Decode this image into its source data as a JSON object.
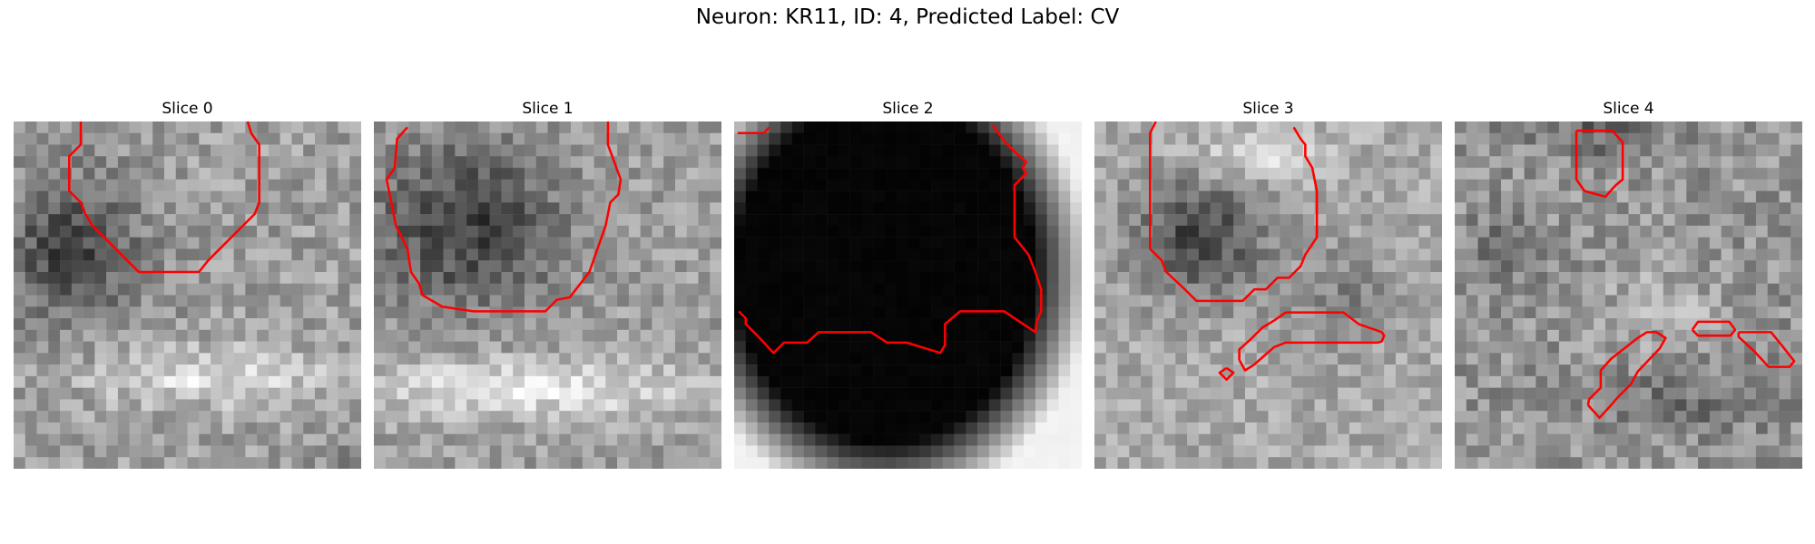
{
  "figure": {
    "title": "Neuron: KR11, ID: 4, Predicted Label: CV"
  },
  "contour_color": "#ff0000",
  "grid_size": 30,
  "slices": [
    {
      "label": "Slice 0",
      "background": "noisy gray texture; dark blob upper-left, bright band lower-middle",
      "contours": [
        [
          [
            5.8,
            0
          ],
          [
            5.8,
            2
          ],
          [
            4.8,
            3
          ],
          [
            4.8,
            6
          ],
          [
            5.8,
            7
          ],
          [
            6.2,
            8
          ],
          [
            6.8,
            9
          ],
          [
            7.8,
            10
          ],
          [
            8.8,
            11
          ],
          [
            9.8,
            12
          ],
          [
            10.8,
            13
          ],
          [
            16,
            13
          ],
          [
            16.8,
            12
          ],
          [
            17.8,
            11
          ],
          [
            18.8,
            10
          ],
          [
            20.8,
            8
          ],
          [
            21.2,
            7
          ],
          [
            21.2,
            2
          ],
          [
            20.5,
            1
          ],
          [
            20.2,
            0
          ]
        ]
      ]
    },
    {
      "label": "Slice 1",
      "background": "dark round region upper area, bright band lower area",
      "contours": [
        [
          [
            2.9,
            0.5
          ],
          [
            2,
            1.5
          ],
          [
            1.8,
            4
          ],
          [
            1.1,
            5
          ],
          [
            1.5,
            7
          ],
          [
            1.9,
            9
          ],
          [
            2.9,
            11
          ],
          [
            3.2,
            13
          ],
          [
            3.9,
            14
          ],
          [
            4.2,
            15
          ],
          [
            5.9,
            16
          ],
          [
            8.6,
            16.4
          ],
          [
            14.8,
            16.4
          ],
          [
            15.8,
            15.4
          ],
          [
            16.9,
            15.2
          ],
          [
            18.6,
            13
          ],
          [
            19.3,
            11
          ],
          [
            20,
            9
          ],
          [
            20.4,
            7
          ],
          [
            21.1,
            6.3
          ],
          [
            21.3,
            5
          ],
          [
            20.2,
            2
          ],
          [
            20.2,
            0
          ]
        ]
      ]
    },
    {
      "label": "Slice 2",
      "background": "mostly black, bright band along right edge and bottom-right corner",
      "contours": [
        [
          [
            0.3,
            1
          ],
          [
            2.6,
            1
          ],
          [
            3.0,
            0.5
          ]
        ],
        [
          [
            0.4,
            16.4
          ],
          [
            1,
            17
          ],
          [
            1,
            17.5
          ],
          [
            2,
            18.5
          ],
          [
            3.4,
            20
          ],
          [
            4.3,
            19.1
          ],
          [
            6.3,
            19.1
          ],
          [
            7.3,
            18.2
          ],
          [
            11.8,
            18.2
          ],
          [
            13.2,
            19.1
          ],
          [
            14.9,
            19.1
          ],
          [
            17.8,
            20
          ],
          [
            18.2,
            19.3
          ],
          [
            18.2,
            17.5
          ],
          [
            19.5,
            16.4
          ],
          [
            23.3,
            16.4
          ],
          [
            24.2,
            17
          ],
          [
            26,
            18.2
          ],
          [
            26.1,
            17.3
          ],
          [
            26.5,
            16.4
          ],
          [
            26.5,
            14.5
          ],
          [
            26,
            13
          ],
          [
            25.4,
            11.5
          ],
          [
            24.2,
            10
          ],
          [
            24.2,
            5.5
          ],
          [
            25.2,
            4.5
          ],
          [
            24.9,
            4
          ],
          [
            25.2,
            3.5
          ],
          [
            24.2,
            2.6
          ],
          [
            23.4,
            1.8
          ],
          [
            22.3,
            0.3
          ]
        ]
      ]
    },
    {
      "label": "Slice 3",
      "background": "dark blob upper-left, noisy gray elsewhere",
      "contours": [
        [
          [
            5.3,
            0
          ],
          [
            4.8,
            1
          ],
          [
            4.8,
            11
          ],
          [
            5.8,
            12
          ],
          [
            6.2,
            13
          ],
          [
            7.8,
            14.5
          ],
          [
            8.8,
            15.5
          ],
          [
            12.8,
            15.5
          ],
          [
            13.8,
            14.5
          ],
          [
            14.8,
            14.5
          ],
          [
            15.8,
            13.5
          ],
          [
            16.8,
            13.5
          ],
          [
            17.8,
            12.5
          ],
          [
            18.2,
            11.5
          ],
          [
            19.2,
            10
          ],
          [
            19.2,
            6
          ],
          [
            18.8,
            4
          ],
          [
            18.2,
            3
          ],
          [
            18.2,
            2
          ],
          [
            17.8,
            1.5
          ],
          [
            17.2,
            0.5
          ]
        ],
        [
          [
            12.5,
            20.6
          ],
          [
            12.5,
            19.7
          ],
          [
            13.5,
            18.8
          ],
          [
            14.5,
            17.8
          ],
          [
            15.5,
            17.2
          ],
          [
            16.5,
            16.5
          ],
          [
            21.5,
            16.5
          ],
          [
            22.8,
            17.5
          ],
          [
            24.8,
            18.2
          ],
          [
            25,
            18.5
          ],
          [
            24.8,
            19
          ],
          [
            24.5,
            19.1
          ],
          [
            16.5,
            19.1
          ],
          [
            15.5,
            19.5
          ],
          [
            14.7,
            20.2
          ],
          [
            13.8,
            21
          ],
          [
            13,
            21.5
          ],
          [
            12.5,
            20.6
          ]
        ],
        [
          [
            11.4,
            21.3
          ],
          [
            12,
            21.7
          ],
          [
            11.4,
            22.3
          ],
          [
            10.8,
            21.7
          ],
          [
            11.4,
            21.3
          ]
        ]
      ]
    },
    {
      "label": "Slice 4",
      "background": "noisy gray texture with scattered bright and dark patches",
      "contours": [
        [
          [
            10.5,
            0.8
          ],
          [
            10.5,
            5
          ],
          [
            11.2,
            6
          ],
          [
            13,
            6.5
          ],
          [
            13.9,
            5.5
          ],
          [
            14.5,
            5
          ],
          [
            14.5,
            1.8
          ],
          [
            13.6,
            0.8
          ],
          [
            10.5,
            0.8
          ]
        ],
        [
          [
            11.5,
            24.5
          ],
          [
            12.5,
            25.6
          ],
          [
            13.5,
            24.5
          ],
          [
            14.1,
            23.8
          ],
          [
            15.2,
            22.7
          ],
          [
            15.8,
            21.6
          ],
          [
            17.7,
            19.6
          ],
          [
            18.2,
            18.7
          ],
          [
            17.4,
            18.2
          ],
          [
            16.6,
            18.2
          ],
          [
            15.8,
            18.7
          ],
          [
            13.5,
            20.5
          ],
          [
            12.6,
            21.5
          ],
          [
            12.6,
            23
          ],
          [
            11.6,
            24
          ],
          [
            11.5,
            24.5
          ]
        ],
        [
          [
            20.5,
            18
          ],
          [
            21,
            17.3
          ],
          [
            23.7,
            17.3
          ],
          [
            24.2,
            18
          ],
          [
            23.8,
            18.5
          ],
          [
            21,
            18.5
          ],
          [
            20.5,
            18
          ]
        ],
        [
          [
            24.5,
            18.2
          ],
          [
            25.3,
            18.2
          ],
          [
            27.3,
            18.2
          ],
          [
            28.2,
            19.3
          ],
          [
            29.3,
            20.7
          ],
          [
            28.9,
            21.2
          ],
          [
            27.1,
            21.2
          ],
          [
            25.8,
            19.8
          ],
          [
            24.5,
            18.6
          ],
          [
            24.5,
            18.2
          ]
        ]
      ]
    }
  ]
}
